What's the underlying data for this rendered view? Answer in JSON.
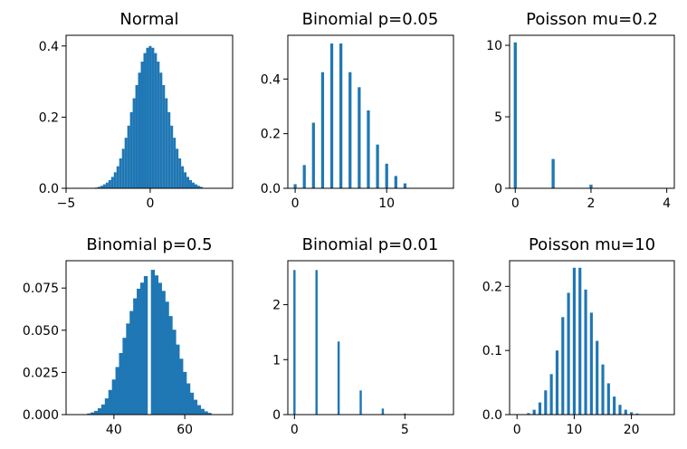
{
  "figure": {
    "bar_color": "#1f77b4"
  },
  "chart_data": [
    {
      "type": "bar",
      "title": "Normal",
      "xlabel": "",
      "ylabel": "",
      "xlim": [
        -5,
        4.9
      ],
      "ylim": [
        0,
        0.43
      ],
      "xticks": [
        -5,
        0
      ],
      "yticks": [
        0.0,
        0.2,
        0.4
      ],
      "xtick_labels": [
        "−5",
        "0"
      ],
      "ytick_labels": [
        "0.0",
        "0.2",
        "0.4"
      ],
      "bin_width": 0.16,
      "x": [
        -3.2,
        -3.04,
        -2.88,
        -2.72,
        -2.56,
        -2.4,
        -2.24,
        -2.08,
        -1.92,
        -1.76,
        -1.6,
        -1.44,
        -1.28,
        -1.12,
        -0.96,
        -0.8,
        -0.64,
        -0.48,
        -0.32,
        -0.16,
        0.0,
        0.16,
        0.32,
        0.48,
        0.64,
        0.8,
        0.96,
        1.12,
        1.28,
        1.44,
        1.6,
        1.76,
        1.92,
        2.08,
        2.24,
        2.4,
        2.56,
        2.72,
        2.88,
        3.04
      ],
      "values": [
        0.002,
        0.004,
        0.007,
        0.011,
        0.016,
        0.023,
        0.032,
        0.045,
        0.062,
        0.084,
        0.111,
        0.142,
        0.176,
        0.214,
        0.253,
        0.29,
        0.325,
        0.356,
        0.38,
        0.395,
        0.4,
        0.395,
        0.38,
        0.356,
        0.325,
        0.29,
        0.253,
        0.214,
        0.176,
        0.142,
        0.111,
        0.084,
        0.062,
        0.045,
        0.032,
        0.023,
        0.016,
        0.011,
        0.007,
        0.004
      ]
    },
    {
      "type": "bar",
      "title": "Binomial p=0.05",
      "xlabel": "",
      "ylabel": "",
      "xlim": [
        -0.8,
        17.3
      ],
      "ylim": [
        0,
        0.56
      ],
      "xticks": [
        0,
        10
      ],
      "yticks": [
        0.0,
        0.2,
        0.4
      ],
      "xtick_labels": [
        "0",
        "10"
      ],
      "ytick_labels": [
        "0.0",
        "0.2",
        "0.4"
      ],
      "bin_width": 0.32,
      "x": [
        0,
        1,
        2,
        3,
        4,
        5,
        6,
        7,
        8,
        9,
        10,
        11,
        12
      ],
      "values": [
        0.015,
        0.085,
        0.24,
        0.425,
        0.53,
        0.53,
        0.425,
        0.37,
        0.285,
        0.16,
        0.09,
        0.045,
        0.018
      ]
    },
    {
      "type": "bar",
      "title": "Poisson mu=0.2",
      "xlabel": "",
      "ylabel": "",
      "xlim": [
        -0.15,
        4.2
      ],
      "ylim": [
        0,
        10.7
      ],
      "xticks": [
        0,
        2,
        4
      ],
      "yticks": [
        0,
        5,
        10
      ],
      "xtick_labels": [
        "0",
        "2",
        "4"
      ],
      "ytick_labels": [
        "0",
        "5",
        "10"
      ],
      "bin_width": 0.08,
      "x": [
        0,
        1,
        2
      ],
      "values": [
        10.2,
        2.05,
        0.25
      ]
    },
    {
      "type": "bar",
      "title": "Binomial p=0.5",
      "xlabel": "",
      "ylabel": "",
      "xlim": [
        26.5,
        73.5
      ],
      "ylim": [
        0,
        0.0912
      ],
      "xticks": [
        40,
        60
      ],
      "yticks": [
        0.0,
        0.025,
        0.05,
        0.075
      ],
      "xtick_labels": [
        "40",
        "60"
      ],
      "ytick_labels": [
        "0.000",
        "0.025",
        "0.050",
        "0.075"
      ],
      "bin_width": 1.12,
      "x": [
        33,
        34,
        35,
        36,
        37,
        38,
        39,
        40,
        41,
        42,
        43,
        44,
        45,
        46,
        47,
        48,
        49,
        51,
        52,
        53,
        54,
        55,
        56,
        57,
        58,
        59,
        60,
        61,
        62,
        63,
        64,
        65,
        66,
        67
      ],
      "values": [
        0.0007,
        0.0013,
        0.0022,
        0.0038,
        0.006,
        0.0096,
        0.0146,
        0.0208,
        0.0282,
        0.0365,
        0.0455,
        0.054,
        0.0614,
        0.0689,
        0.0746,
        0.0782,
        0.0821,
        0.0858,
        0.0825,
        0.0781,
        0.0733,
        0.0669,
        0.0584,
        0.0503,
        0.0415,
        0.0331,
        0.0253,
        0.0185,
        0.013,
        0.0088,
        0.0056,
        0.0034,
        0.0019,
        0.001
      ]
    },
    {
      "type": "bar",
      "title": "Binomial p=0.01",
      "xlabel": "",
      "ylabel": "",
      "xlim": [
        -0.3,
        7.2
      ],
      "ylim": [
        0,
        2.8
      ],
      "xticks": [
        0,
        5
      ],
      "yticks": [
        0,
        1,
        2
      ],
      "xtick_labels": [
        "0",
        "5"
      ],
      "ytick_labels": [
        "0",
        "1",
        "2"
      ],
      "bin_width": 0.1,
      "x": [
        0,
        1,
        2,
        3,
        4,
        5
      ],
      "values": [
        2.63,
        2.63,
        1.33,
        0.44,
        0.11,
        0.02
      ]
    },
    {
      "type": "bar",
      "title": "Poisson mu=10",
      "xlabel": "",
      "ylabel": "",
      "xlim": [
        -1.3,
        27.5
      ],
      "ylim": [
        0,
        0.24
      ],
      "xticks": [
        0,
        10,
        20
      ],
      "yticks": [
        0.0,
        0.1,
        0.2
      ],
      "xtick_labels": [
        "0",
        "10",
        "20"
      ],
      "ytick_labels": [
        "0.0",
        "0.1",
        "0.2"
      ],
      "bin_width": 0.5,
      "x": [
        1,
        2,
        3,
        4,
        5,
        6,
        7,
        8,
        9,
        10,
        11,
        12,
        13,
        14,
        15,
        16,
        17,
        18,
        19,
        20,
        21
      ],
      "values": [
        0.0005,
        0.0023,
        0.0076,
        0.0189,
        0.0378,
        0.0631,
        0.1,
        0.152,
        0.19,
        0.229,
        0.229,
        0.195,
        0.159,
        0.115,
        0.0782,
        0.0488,
        0.0281,
        0.0152,
        0.0076,
        0.0037,
        0.0017
      ]
    }
  ]
}
